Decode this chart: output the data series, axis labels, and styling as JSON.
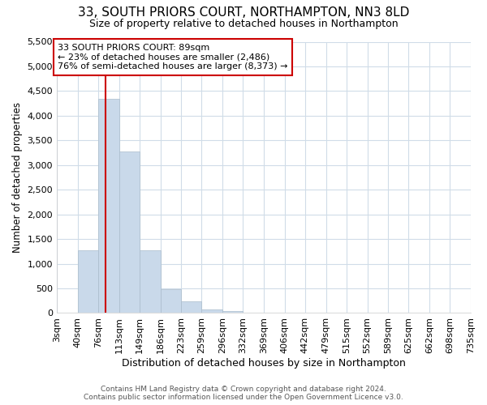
{
  "title": "33, SOUTH PRIORS COURT, NORTHAMPTON, NN3 8LD",
  "subtitle": "Size of property relative to detached houses in Northampton",
  "xlabel": "Distribution of detached houses by size in Northampton",
  "ylabel": "Number of detached properties",
  "footer_line1": "Contains HM Land Registry data © Crown copyright and database right 2024.",
  "footer_line2": "Contains public sector information licensed under the Open Government Licence v3.0.",
  "annotation_title": "33 SOUTH PRIORS COURT: 89sqm",
  "annotation_line1": "← 23% of detached houses are smaller (2,486)",
  "annotation_line2": "76% of semi-detached houses are larger (8,373) →",
  "property_size": 89,
  "bar_color": "#c9d9ea",
  "bar_edge_color": "#aabccc",
  "vline_color": "#cc0000",
  "annotation_box_color": "#cc0000",
  "bins": [
    3,
    40,
    76,
    113,
    149,
    186,
    223,
    259,
    296,
    332,
    369,
    406,
    442,
    479,
    515,
    552,
    589,
    625,
    662,
    698,
    735
  ],
  "bin_labels": [
    "3sqm",
    "40sqm",
    "76sqm",
    "113sqm",
    "149sqm",
    "186sqm",
    "223sqm",
    "259sqm",
    "296sqm",
    "332sqm",
    "369sqm",
    "406sqm",
    "442sqm",
    "479sqm",
    "515sqm",
    "552sqm",
    "589sqm",
    "625sqm",
    "662sqm",
    "698sqm",
    "735sqm"
  ],
  "bar_heights": [
    0,
    1280,
    4350,
    3280,
    1280,
    480,
    230,
    80,
    40,
    0,
    0,
    0,
    0,
    0,
    0,
    0,
    0,
    0,
    0,
    0
  ],
  "ylim": [
    0,
    5500
  ],
  "yticks": [
    0,
    500,
    1000,
    1500,
    2000,
    2500,
    3000,
    3500,
    4000,
    4500,
    5000,
    5500
  ],
  "background_color": "#ffffff",
  "plot_background_color": "#ffffff",
  "grid_color": "#d0dce8"
}
